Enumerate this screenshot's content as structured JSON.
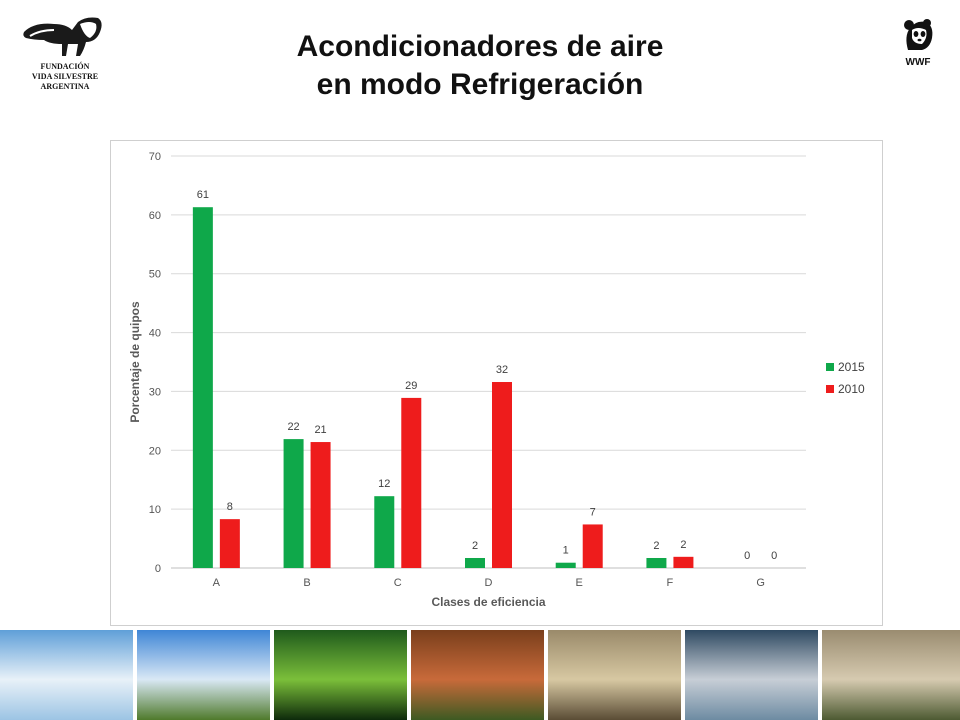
{
  "header": {
    "title_line1": "Acondicionadores de aire",
    "title_line2": "en modo Refrigeración"
  },
  "logos": {
    "left": {
      "icon": "anteater-logo-icon",
      "line1": "FUNDACIÓN",
      "line2": "VIDA SILVESTRE",
      "line3": "ARGENTINA"
    },
    "right": {
      "icon": "panda-logo-icon",
      "text": "WWF"
    }
  },
  "chart_data": {
    "type": "bar",
    "categories": [
      "A",
      "B",
      "C",
      "D",
      "E",
      "F",
      "G"
    ],
    "series": [
      {
        "name": "2015",
        "color": "#0fa84a",
        "values": [
          61.3,
          21.9,
          12.2,
          1.7,
          0.9,
          1.7,
          0
        ],
        "labels": [
          "61",
          "22",
          "12",
          "2",
          "1",
          "2",
          "0"
        ]
      },
      {
        "name": "2010",
        "color": "#ee1c1c",
        "values": [
          8.3,
          21.4,
          28.9,
          31.6,
          7.4,
          1.9,
          0
        ],
        "labels": [
          "8",
          "21",
          "29",
          "32",
          "7",
          "2",
          "0"
        ]
      }
    ],
    "title": "",
    "xlabel": "Clases de eficiencia",
    "ylabel": "Porcentaje de quipos",
    "ylim": [
      0,
      70
    ],
    "yticks": [
      "0",
      "10",
      "20",
      "30",
      "40",
      "50",
      "60",
      "70"
    ],
    "grid": true,
    "legend": "right"
  },
  "photos": [
    {
      "name": "photo-glacier",
      "colors": [
        "#5f9fd8",
        "#e8f1f8",
        "#9cc4e4"
      ]
    },
    {
      "name": "photo-wind-turbines",
      "colors": [
        "#3f86d6",
        "#d9e8f5",
        "#4f7a2c"
      ]
    },
    {
      "name": "photo-fern",
      "colors": [
        "#1f5a1c",
        "#7bbf3a",
        "#0d2a0b"
      ]
    },
    {
      "name": "photo-logging",
      "colors": [
        "#7a3f1c",
        "#c86a3a",
        "#3d5a22"
      ]
    },
    {
      "name": "photo-seal",
      "colors": [
        "#9a8a6a",
        "#d7c8a2",
        "#5a4c35"
      ]
    },
    {
      "name": "photo-fish",
      "colors": [
        "#2f4a62",
        "#c7ced6",
        "#6d8ba2"
      ]
    },
    {
      "name": "photo-dry-land",
      "colors": [
        "#9a8c70",
        "#d6cab0",
        "#4d5a32"
      ]
    }
  ]
}
